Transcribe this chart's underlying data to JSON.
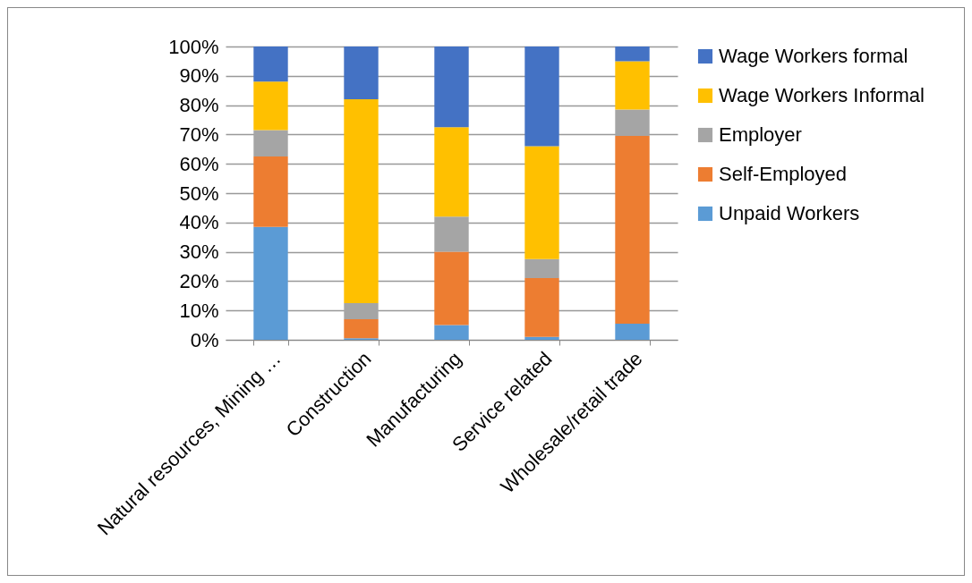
{
  "chart_data": {
    "type": "bar",
    "stacked": true,
    "categories": [
      "Natural resources, Mining …",
      "Construction",
      "Manufacturing",
      "Service related",
      "Wholesale/retail trade"
    ],
    "series": [
      {
        "name": "Unpaid Workers",
        "color": "#5b9bd5",
        "values": [
          38.5,
          0.5,
          5,
          1,
          5.5
        ]
      },
      {
        "name": "Self-Employed",
        "color": "#ed7d31",
        "values": [
          24,
          6.5,
          25,
          20,
          64
        ]
      },
      {
        "name": "Employer",
        "color": "#a5a5a5",
        "values": [
          9,
          5.5,
          12,
          6.5,
          9
        ]
      },
      {
        "name": "Wage Workers Informal",
        "color": "#ffc000",
        "values": [
          16.5,
          69.5,
          30.5,
          38.5,
          16.5
        ]
      },
      {
        "name": "Wage Workers formal",
        "color": "#4472c4",
        "values": [
          12,
          18,
          27.5,
          34,
          5
        ]
      }
    ],
    "ylim": [
      0,
      100
    ],
    "yticks": [
      {
        "value": 0,
        "label": "0%"
      },
      {
        "value": 10,
        "label": "10%"
      },
      {
        "value": 20,
        "label": "20%"
      },
      {
        "value": 30,
        "label": "30%"
      },
      {
        "value": 40,
        "label": "40%"
      },
      {
        "value": 50,
        "label": "50%"
      },
      {
        "value": 60,
        "label": "60%"
      },
      {
        "value": 70,
        "label": "70%"
      },
      {
        "value": 80,
        "label": "80%"
      },
      {
        "value": 90,
        "label": "90%"
      },
      {
        "value": 100,
        "label": "100%"
      }
    ],
    "grid": "y",
    "legend": "right"
  }
}
